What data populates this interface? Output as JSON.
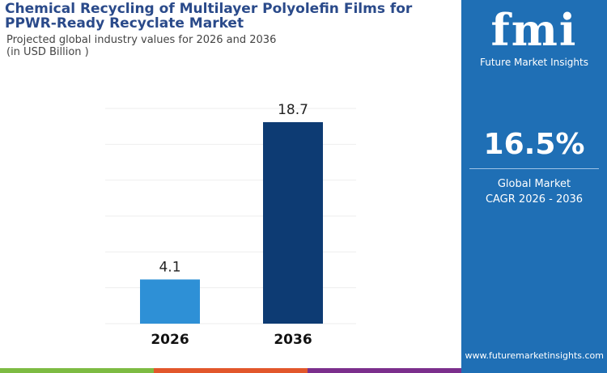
{
  "title": "Chemical Recycling of Multilayer Polyolefin Films for PPWR-Ready Recyclate Market",
  "subtitle": "Projected global industry values for 2026 and 2036",
  "unit": "(in USD Billion )",
  "brand": {
    "logo": "fmi",
    "name": "Future Market Insights",
    "url": "www.futuremarketinsights.com"
  },
  "cagr": {
    "value": "16.5%",
    "label1": "Global Market",
    "label2": "CAGR 2026 - 2036"
  },
  "colors": {
    "panel": "#1f6fb5",
    "bar2026": "#2e90d6",
    "bar2036": "#0d3b73",
    "stripes": [
      "#7dbb42",
      "#e2572b",
      "#7b2f8c"
    ]
  },
  "chart_data": {
    "type": "bar",
    "categories": [
      "2026",
      "2036"
    ],
    "values": [
      4.1,
      18.7
    ],
    "ylim": [
      0,
      20
    ],
    "grid": true,
    "title": "",
    "xlabel": "",
    "ylabel": ""
  }
}
